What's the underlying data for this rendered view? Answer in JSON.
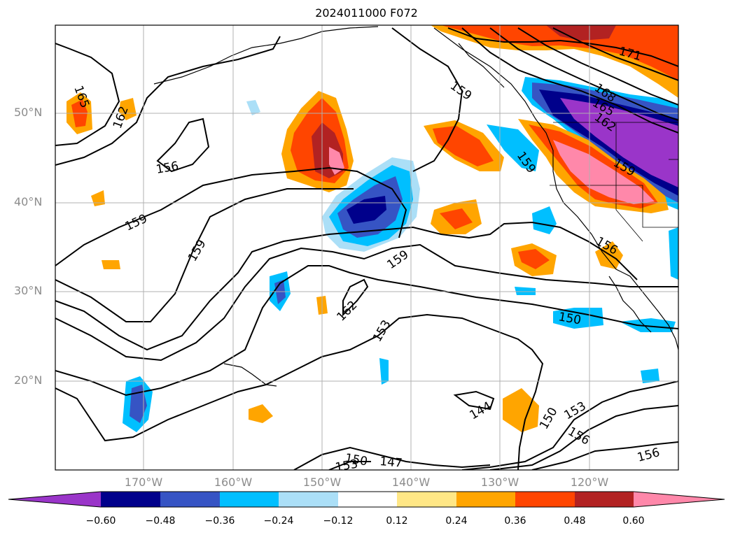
{
  "title": "2024011000 F072",
  "map": {
    "lat_labels": [
      "50°N",
      "40°N",
      "30°N",
      "20°N"
    ],
    "lon_labels": [
      "170°W",
      "160°W",
      "150°W",
      "140°W",
      "130°W",
      "120°W"
    ],
    "contour_labels": [
      {
        "text": "165",
        "id": "c165-west"
      },
      {
        "text": "162",
        "id": "c162-west"
      },
      {
        "text": "156",
        "id": "c156-west"
      },
      {
        "text": "159",
        "id": "c159-west"
      },
      {
        "text": "159",
        "id": "c159-mid"
      },
      {
        "text": "159",
        "id": "c159-nepac"
      },
      {
        "text": "159",
        "id": "c159-center"
      },
      {
        "text": "162",
        "id": "c162-center"
      },
      {
        "text": "153",
        "id": "c153-center"
      },
      {
        "text": "150",
        "id": "c150-east"
      },
      {
        "text": "144",
        "id": "c144"
      },
      {
        "text": "150",
        "id": "c150-se"
      },
      {
        "text": "153",
        "id": "c153-se"
      },
      {
        "text": "156",
        "id": "c156-se"
      },
      {
        "text": "156",
        "id": "c156-baja"
      },
      {
        "text": "156",
        "id": "c156-far-se"
      },
      {
        "text": "150",
        "id": "c150-south"
      },
      {
        "text": "147",
        "id": "c147-south"
      },
      {
        "text": "153",
        "id": "c153-south"
      },
      {
        "text": "171",
        "id": "c171"
      },
      {
        "text": "168",
        "id": "c168"
      },
      {
        "text": "165",
        "id": "c165-ne"
      },
      {
        "text": "162",
        "id": "c162-ne"
      },
      {
        "text": "159",
        "id": "c159-ca"
      },
      {
        "text": "159",
        "id": "c159-bc"
      }
    ]
  },
  "colorbar": {
    "colors": [
      "#9a35c9",
      "#00008b",
      "#3654c4",
      "#00bfff",
      "#abdff7",
      "#ffffff",
      "#ffe786",
      "#ffa500",
      "#ff4500",
      "#b22222",
      "#ff88aa"
    ],
    "labels": [
      "−0.60",
      "−0.48",
      "−0.36",
      "−0.24",
      "−0.12",
      "0.12",
      "0.24",
      "0.36",
      "0.48",
      "0.60"
    ]
  }
}
